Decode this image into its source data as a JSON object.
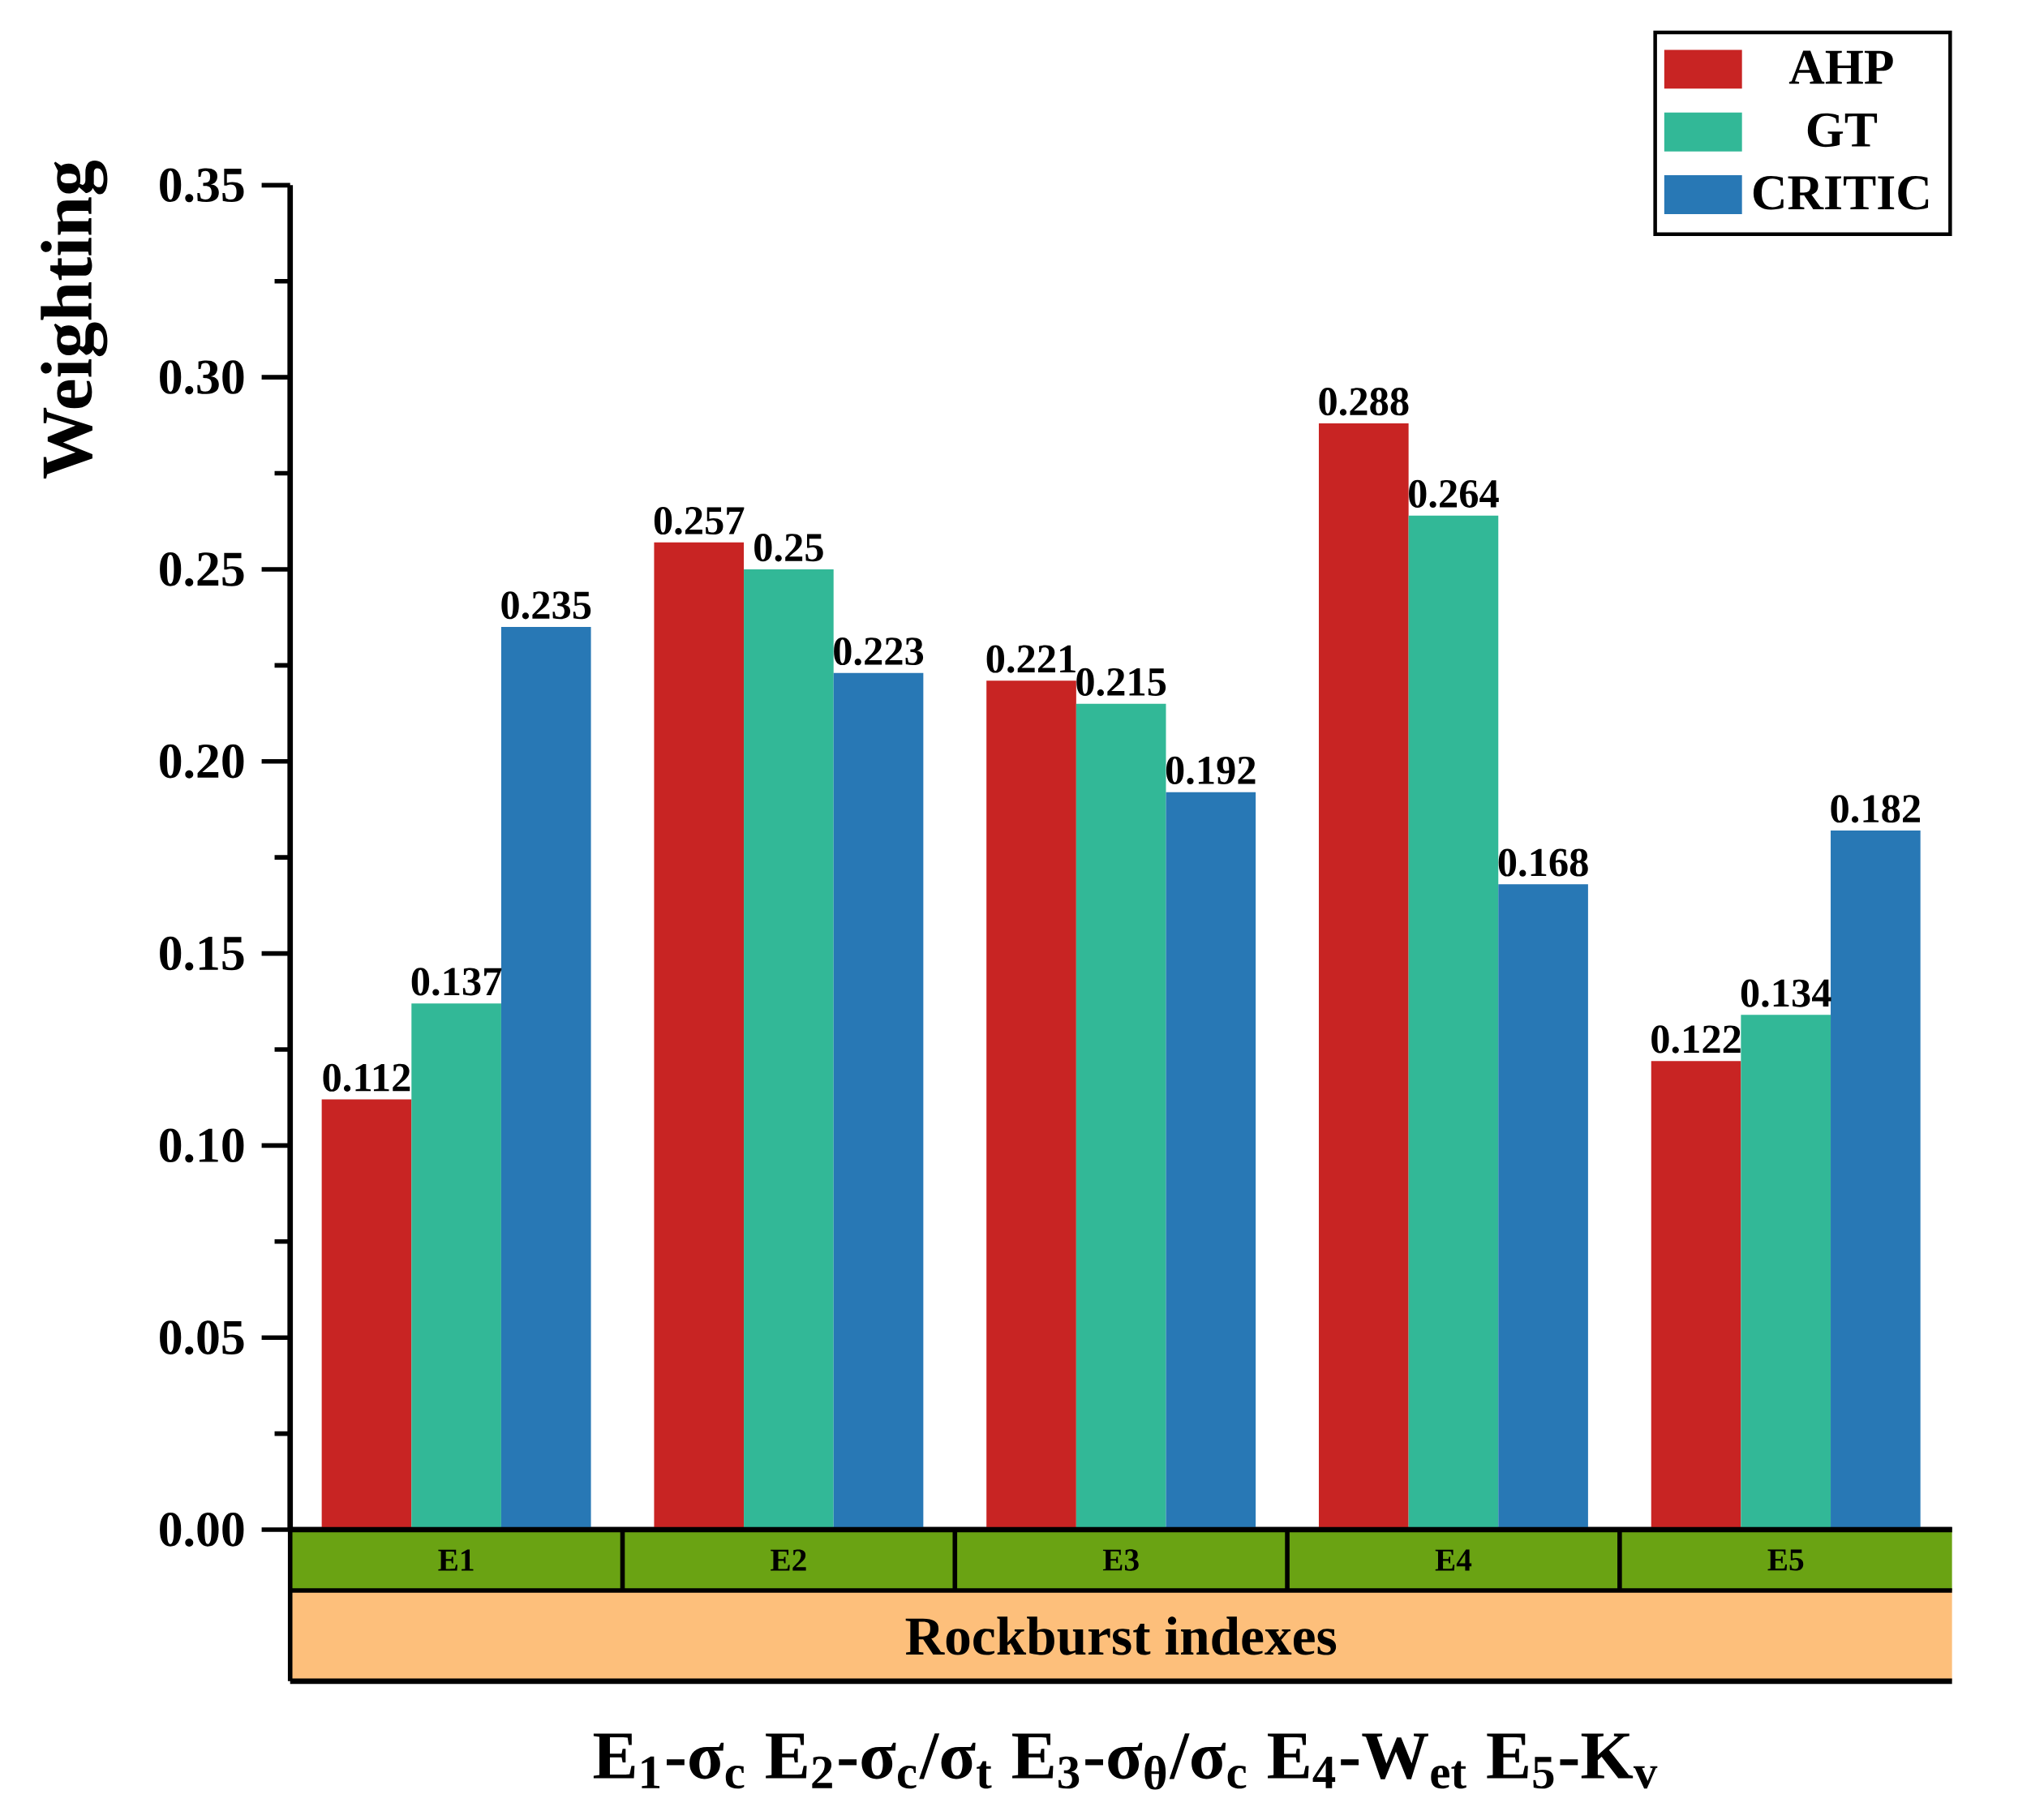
{
  "chart_data": {
    "type": "bar",
    "ylabel": "Weighting",
    "xlabel": "Rockburst indexes",
    "categories": [
      "E1",
      "E2",
      "E3",
      "E4",
      "E5"
    ],
    "series": [
      {
        "name": "AHP",
        "color": "#c82423",
        "values": [
          0.112,
          0.257,
          0.221,
          0.288,
          0.122
        ]
      },
      {
        "name": "GT",
        "color": "#32b897",
        "values": [
          0.137,
          0.25,
          0.215,
          0.264,
          0.134
        ]
      },
      {
        "name": "CRITIC",
        "color": "#2878b5",
        "values": [
          0.235,
          0.223,
          0.192,
          0.168,
          0.182
        ]
      }
    ],
    "ylim": [
      0,
      0.35
    ],
    "yticks": [
      {
        "value": 0,
        "label": "0.00"
      },
      {
        "value": 0.05,
        "label": "0.05"
      },
      {
        "value": 0.1,
        "label": "0.10"
      },
      {
        "value": 0.15,
        "label": "0.15"
      },
      {
        "value": 0.2,
        "label": "0.20"
      },
      {
        "value": 0.25,
        "label": "0.25"
      },
      {
        "value": 0.3,
        "label": "0.30"
      },
      {
        "value": 0.35,
        "label": "0.35"
      }
    ],
    "data_labels": true,
    "legend": "top right",
    "annotations": [
      "E$_{1}$-σ$_{c}$  E$_{2}$-σ$_{c}$/σ$_{t}$  E$_{3}$-σ$_{θ}$/σ$_{c}$  E$_{4}$-W$_{et}$  E$_{5}$-K$_{v}$"
    ]
  }
}
